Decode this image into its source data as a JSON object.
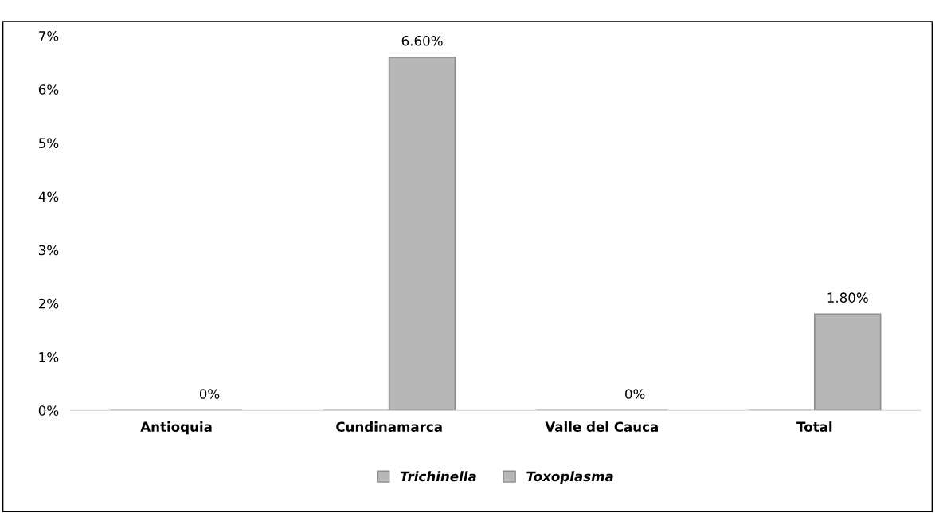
{
  "chart_data": {
    "type": "bar",
    "categories": [
      "Antioquia",
      "Cundinamarca",
      "Valle del Cauca",
      "Total"
    ],
    "series": [
      {
        "name": "Trichinella",
        "color": "#b7b7b7",
        "values": [
          0,
          0,
          0,
          0
        ]
      },
      {
        "name": "Toxoplasma",
        "color": "#b7b7b7",
        "values": [
          0,
          6.6,
          0,
          1.8
        ],
        "value_labels": [
          "0%",
          "6.60%",
          "0%",
          "1.80%"
        ]
      }
    ],
    "ylim": [
      0,
      7
    ],
    "yticks": [
      {
        "value": 0,
        "label": "0%"
      },
      {
        "value": 1,
        "label": "1%"
      },
      {
        "value": 2,
        "label": "2%"
      },
      {
        "value": 3,
        "label": "3%"
      },
      {
        "value": 4,
        "label": "4%"
      },
      {
        "value": 5,
        "label": "5%"
      },
      {
        "value": 6,
        "label": "6%"
      },
      {
        "value": 7,
        "label": "7%"
      }
    ],
    "grid": false,
    "legend": "bottom"
  }
}
